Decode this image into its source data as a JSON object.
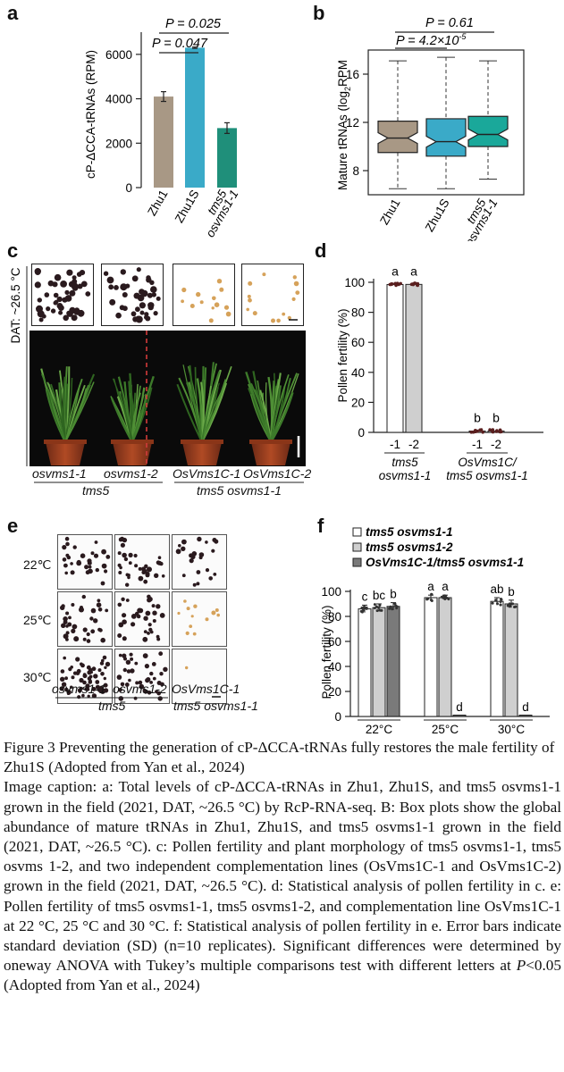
{
  "panels": {
    "a": {
      "letter": "a",
      "chart_data": {
        "type": "bar",
        "categories": [
          "Zhu1",
          "Zhu1S",
          "tms5 osvms1-1"
        ],
        "values": [
          4100,
          6300,
          2680
        ],
        "errors": [
          220,
          30,
          240
        ],
        "colors": [
          "#a89885",
          "#3aaac8",
          "#1f8f7a"
        ],
        "ylabel": "cP-ΔCCA-tRNAs (RPM)",
        "ylim": [
          0,
          7000
        ],
        "yticks": [
          "0",
          "2000",
          "4000",
          "6000"
        ],
        "tick_values": [
          0,
          2000,
          4000,
          6000
        ],
        "xtick_labels": [
          "Zhu1",
          "Zhu1S"
        ],
        "xtick_italic": [
          "tms5",
          "osvms1-1"
        ],
        "annotations": [
          "P = 0.025",
          "P = 0.047"
        ]
      }
    },
    "b": {
      "letter": "b",
      "chart_data": {
        "type": "box",
        "categories": [
          "Zhu1",
          "Zhu1S",
          "tms5 osvms1-1"
        ],
        "boxes": [
          {
            "min": 6.5,
            "q1": 9.5,
            "median": 10.7,
            "q3": 12.1,
            "max": 17.1,
            "notch": 0.45
          },
          {
            "min": 6.5,
            "q1": 9.2,
            "median": 10.4,
            "q3": 12.3,
            "max": 17.4,
            "notch": 0.45
          },
          {
            "min": 7.3,
            "q1": 10.0,
            "median": 11.0,
            "q3": 12.5,
            "max": 17.1,
            "notch": 0.45
          }
        ],
        "colors": [
          "#a89885",
          "#3aaac8",
          "#1aa89a"
        ],
        "ylabel_main": "Mature tRNAs (log",
        "ylabel_sub": "2",
        "ylabel_end": "RPM",
        "ylim": [
          6,
          18
        ],
        "tick_values": [
          8,
          12,
          16
        ],
        "yticks": [
          "8",
          "12",
          "16"
        ],
        "xtick_labels": [
          "Zhu1",
          "Zhu1S"
        ],
        "xtick_italic": [
          "tms5",
          "osvms1-1"
        ],
        "annotations": [
          "P = 0.61",
          "P = 4.2×10",
          "-5"
        ]
      }
    },
    "c": {
      "letter": "c",
      "side_label": "DAT: ~26.5 °C",
      "plant_labels": [
        "osvms1-1",
        "osvms1-2",
        "OsVms1C-1",
        "OsVms1C-2"
      ],
      "group_labels": [
        "tms5",
        "tms5 osvms1-1"
      ]
    },
    "d": {
      "letter": "d",
      "chart_data": {
        "type": "bar",
        "categories": [
          "-1",
          "-2",
          "-1",
          "-2"
        ],
        "values": [
          98.5,
          98.6,
          0.4,
          0.4
        ],
        "colors": [
          "#ffffff",
          "#cfcfcf",
          "#ffffff",
          "#cfcfcf"
        ],
        "letters": [
          "a",
          "a",
          "b",
          "b"
        ],
        "ylabel": "Pollen fertility (%)",
        "ylim": [
          0,
          100
        ],
        "tick_values": [
          0,
          20,
          40,
          60,
          80,
          100
        ],
        "yticks": [
          "0",
          "20",
          "40",
          "60",
          "80",
          "100"
        ],
        "group_labels": [
          "tms5",
          "osvms1-1",
          "OsVms1C/",
          "tms5 osvms1-1"
        ]
      }
    },
    "e": {
      "letter": "e",
      "row_labels": [
        "22℃",
        "25℃",
        "30℃"
      ],
      "col_labels": [
        "osvms1-1",
        "osvms1-2",
        "OsVms1C-1"
      ],
      "group_labels": [
        "tms5",
        "tms5 osvms1-1"
      ]
    },
    "f": {
      "letter": "f",
      "chart_data": {
        "type": "bar",
        "categories": [
          "22°C",
          "25°C",
          "30°C"
        ],
        "series": [
          {
            "name": "tms5 osvms1-1",
            "values": [
              86,
              95,
              92
            ],
            "errors": [
              3,
              2,
              3
            ],
            "color": "#ffffff"
          },
          {
            "name": "tms5 osvms1-2",
            "values": [
              87,
              95,
              90
            ],
            "errors": [
              3,
              2,
              3
            ],
            "color": "#cfcfcf"
          },
          {
            "name": "OsVms1C-1/tms5 osvms1-1",
            "values": [
              88,
              1,
              1
            ],
            "errors": [
              3,
              0.5,
              0.5
            ],
            "color": "#7a7a7a"
          }
        ],
        "letters": [
          [
            "c",
            "bc",
            "b"
          ],
          [
            "a",
            "a",
            "d"
          ],
          [
            "ab",
            "b",
            "d"
          ]
        ],
        "ylabel": "Pollen fertility (%)",
        "ylim": [
          0,
          100
        ],
        "tick_values": [
          0,
          20,
          40,
          60,
          80,
          100
        ],
        "yticks": [
          "0",
          "20",
          "40",
          "60",
          "80",
          "100"
        ],
        "legend_placement": "top"
      }
    }
  },
  "caption": {
    "title": "Figure 3 Preventing the generation of cP-ΔCCA-tRNAs fully restores the male fertility of Zhu1S (Adopted from Yan et al., 2024)",
    "body_1": "Image caption: a: Total levels of cP-ΔCCA-tRNAs in Zhu1, Zhu1S, and tms5 osvms1-1 grown in the field (2021, DAT, ~26.5 °C) by RcP-RNA-seq. B: Box plots show the global abundance of mature tRNAs in Zhu1, Zhu1S, and tms5 osvms1-1 grown in the field (2021, DAT, ~26.5 °C). c: Pollen fertility and plant morphology of tms5 osvms1-1, tms5 osvms 1-2, and two independent complementation lines (OsVms1C-1 and OsVms1C-2) grown in the field (2021, DAT, ~26.5 °C). d: Statistical analysis of pollen fertility in c. e: Pollen fertility of tms5 osvms1-1, tms5 osvms1-2, and complementation line OsVms1C-1 at 22 °C, 25 °C and 30 °C. f: Statistical analysis of pollen fertility in e. Error bars indicate standard deviation (SD) (n=10 replicates). Significant differences were determined by oneway ANOVA with Tukey’s multiple comparisons test with different letters at ",
    "body_italic": "P",
    "body_2": "<0.05 (Adopted from Yan et al., 2024)"
  },
  "colors": {
    "pollen_dark": "#2a1a1e",
    "pollen_light": "#d6a25a",
    "red_divider": "#d23b3b"
  }
}
